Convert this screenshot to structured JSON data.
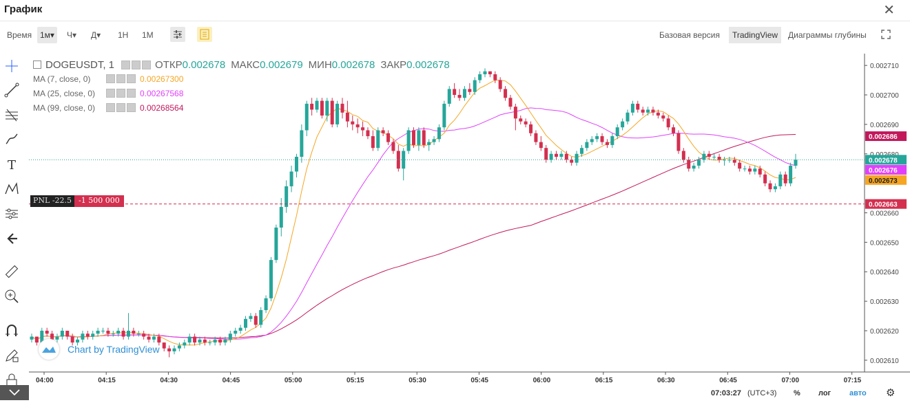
{
  "window": {
    "title": "График"
  },
  "toolbar": {
    "time_label": "Время",
    "intervals": [
      "1м▾",
      "Ч▾",
      "Д▾",
      "1Н",
      "1М"
    ],
    "active_interval": "1м▾",
    "versions": [
      "Базовая версия",
      "TradingView",
      "Диаграммы глубины"
    ],
    "active_version": "TradingView"
  },
  "legend": {
    "symbol": "DOGEUSDT, 1",
    "open_label": "ОТКР",
    "open": "0.002678",
    "high_label": "МАКС",
    "high": "0.002679",
    "low_label": "МИН",
    "low": "0.002678",
    "close_label": "ЗАКР",
    "close": "0.002678",
    "ma": [
      {
        "label": "MA (7, close, 0)",
        "value": "0.00267300",
        "color": "#f5a623"
      },
      {
        "label": "MA (25, close, 0)",
        "value": "0.00267568",
        "color": "#e040fb"
      },
      {
        "label": "MA (99, close, 0)",
        "value": "0.00268564",
        "color": "#c2185b"
      }
    ]
  },
  "position": {
    "pnl": "PNL -22.5",
    "qty": "-1 500 000",
    "price": "0.002663"
  },
  "watermark": "Chart by TradingView",
  "bottom": {
    "time": "07:03:27",
    "tz": "(UTC+3)",
    "percent": "%",
    "log": "лог",
    "auto": "авто"
  },
  "chart_data": {
    "type": "candlestick",
    "y_ticks": [
      "0.002710",
      "0.002700",
      "0.002690",
      "0.002680",
      "0.002660",
      "0.002650",
      "0.002640",
      "0.002630",
      "0.002620",
      "0.002610"
    ],
    "x_ticks": [
      "04:00",
      "04:15",
      "04:30",
      "04:45",
      "05:00",
      "05:15",
      "05:30",
      "05:45",
      "06:00",
      "06:15",
      "06:30",
      "06:45",
      "07:00",
      "07:15"
    ],
    "price_badges": [
      {
        "value": "0.002686",
        "color": "#c2185b"
      },
      {
        "value": "0.002678",
        "color": "#26a69a"
      },
      {
        "value": "0.002676",
        "color": "#e040fb"
      },
      {
        "value": "0.002673",
        "color": "#f5a623"
      },
      {
        "value": "0.002663",
        "color": "#d32f4f"
      }
    ],
    "ylim": [
      0.002606,
      0.002714
    ],
    "candles": [
      [
        0.002617,
        0.002619,
        0.002616,
        0.002618
      ],
      [
        0.002618,
        0.002618,
        0.002615,
        0.002616
      ],
      [
        0.002616,
        0.002621,
        0.002615,
        0.00262
      ],
      [
        0.00262,
        0.002621,
        0.002618,
        0.002619
      ],
      [
        0.002619,
        0.00262,
        0.002616,
        0.002617
      ],
      [
        0.002617,
        0.002619,
        0.002616,
        0.002618
      ],
      [
        0.002618,
        0.002621,
        0.002617,
        0.00262
      ],
      [
        0.00262,
        0.00262,
        0.002617,
        0.002618
      ],
      [
        0.002618,
        0.002619,
        0.002615,
        0.002616
      ],
      [
        0.002616,
        0.002618,
        0.002615,
        0.002617
      ],
      [
        0.002617,
        0.00262,
        0.002616,
        0.002619
      ],
      [
        0.002619,
        0.00262,
        0.002617,
        0.002618
      ],
      [
        0.002618,
        0.00262,
        0.002617,
        0.002619
      ],
      [
        0.002619,
        0.002621,
        0.002618,
        0.00262
      ],
      [
        0.00262,
        0.002621,
        0.002619,
        0.00262
      ],
      [
        0.00262,
        0.002621,
        0.002618,
        0.002619
      ],
      [
        0.002619,
        0.00262,
        0.002618,
        0.002619
      ],
      [
        0.002619,
        0.002621,
        0.002618,
        0.00262
      ],
      [
        0.00262,
        0.002621,
        0.002617,
        0.002618
      ],
      [
        0.002618,
        0.002626,
        0.002617,
        0.00262
      ],
      [
        0.00262,
        0.002621,
        0.002618,
        0.002619
      ],
      [
        0.002619,
        0.00262,
        0.002618,
        0.002619
      ],
      [
        0.002619,
        0.00262,
        0.002617,
        0.002618
      ],
      [
        0.002618,
        0.002619,
        0.002616,
        0.002617
      ],
      [
        0.002617,
        0.002619,
        0.002616,
        0.002618
      ],
      [
        0.002618,
        0.002619,
        0.002615,
        0.002616
      ],
      [
        0.002616,
        0.002616,
        0.002613,
        0.002614
      ],
      [
        0.002614,
        0.002615,
        0.002611,
        0.002613
      ],
      [
        0.002613,
        0.002615,
        0.002612,
        0.002614
      ],
      [
        0.002614,
        0.002616,
        0.002613,
        0.002615
      ],
      [
        0.002615,
        0.002617,
        0.002614,
        0.002616
      ],
      [
        0.002616,
        0.002619,
        0.002615,
        0.002618
      ],
      [
        0.002618,
        0.002619,
        0.002615,
        0.002616
      ],
      [
        0.002616,
        0.002618,
        0.002615,
        0.002617
      ],
      [
        0.002617,
        0.002618,
        0.002615,
        0.002616
      ],
      [
        0.002616,
        0.002617,
        0.002615,
        0.002616
      ],
      [
        0.002616,
        0.002618,
        0.002615,
        0.002617
      ],
      [
        0.002617,
        0.002618,
        0.002615,
        0.002616
      ],
      [
        0.002616,
        0.002618,
        0.002615,
        0.002617
      ],
      [
        0.002617,
        0.00262,
        0.002616,
        0.002619
      ],
      [
        0.002619,
        0.002621,
        0.002618,
        0.00262
      ],
      [
        0.00262,
        0.002622,
        0.002619,
        0.002621
      ],
      [
        0.002621,
        0.002625,
        0.00262,
        0.002624
      ],
      [
        0.002624,
        0.002626,
        0.002623,
        0.002625
      ],
      [
        0.002625,
        0.002626,
        0.002621,
        0.002622
      ],
      [
        0.002622,
        0.002628,
        0.002621,
        0.002627
      ],
      [
        0.002627,
        0.002632,
        0.002626,
        0.002631
      ],
      [
        0.002631,
        0.002645,
        0.00263,
        0.002644
      ],
      [
        0.002644,
        0.002656,
        0.002643,
        0.002655
      ],
      [
        0.002655,
        0.002665,
        0.002652,
        0.002662
      ],
      [
        0.002662,
        0.002671,
        0.00266,
        0.002669
      ],
      [
        0.002669,
        0.002676,
        0.002667,
        0.002674
      ],
      [
        0.002674,
        0.00268,
        0.002672,
        0.002679
      ],
      [
        0.002679,
        0.00269,
        0.002677,
        0.002688
      ],
      [
        0.002688,
        0.002698,
        0.002686,
        0.002697
      ],
      [
        0.002697,
        0.002699,
        0.002693,
        0.002695
      ],
      [
        0.002695,
        0.002699,
        0.002694,
        0.002698
      ],
      [
        0.002698,
        0.002699,
        0.002692,
        0.002693
      ],
      [
        0.002693,
        0.002699,
        0.002691,
        0.002698
      ],
      [
        0.002698,
        0.002699,
        0.002689,
        0.00269
      ],
      [
        0.00269,
        0.002698,
        0.002689,
        0.002697
      ],
      [
        0.002697,
        0.002699,
        0.002692,
        0.002694
      ],
      [
        0.002694,
        0.002698,
        0.002689,
        0.002691
      ],
      [
        0.002691,
        0.002693,
        0.002688,
        0.00269
      ],
      [
        0.00269,
        0.002692,
        0.002687,
        0.002689
      ],
      [
        0.002689,
        0.002691,
        0.002686,
        0.002688
      ],
      [
        0.002688,
        0.002689,
        0.002685,
        0.002686
      ],
      [
        0.002686,
        0.002688,
        0.002681,
        0.002682
      ],
      [
        0.002682,
        0.002689,
        0.002681,
        0.002688
      ],
      [
        0.002688,
        0.002689,
        0.002686,
        0.002687
      ],
      [
        0.002687,
        0.002688,
        0.002683,
        0.002684
      ],
      [
        0.002684,
        0.002685,
        0.00268,
        0.002681
      ],
      [
        0.002681,
        0.002683,
        0.002674,
        0.002675
      ],
      [
        0.002675,
        0.002682,
        0.002671,
        0.002681
      ],
      [
        0.002681,
        0.002689,
        0.00268,
        0.002688
      ],
      [
        0.002688,
        0.002689,
        0.002682,
        0.002683
      ],
      [
        0.002683,
        0.002689,
        0.002681,
        0.002688
      ],
      [
        0.002688,
        0.002689,
        0.002682,
        0.002683
      ],
      [
        0.002683,
        0.002685,
        0.002681,
        0.002684
      ],
      [
        0.002684,
        0.002686,
        0.002683,
        0.002685
      ],
      [
        0.002685,
        0.00269,
        0.002684,
        0.002689
      ],
      [
        0.002689,
        0.002698,
        0.002688,
        0.002697
      ],
      [
        0.002697,
        0.002703,
        0.002696,
        0.002702
      ],
      [
        0.002702,
        0.002704,
        0.002699,
        0.0027
      ],
      [
        0.0027,
        0.002702,
        0.002698,
        0.002699
      ],
      [
        0.002699,
        0.002703,
        0.002698,
        0.002702
      ],
      [
        0.002702,
        0.002704,
        0.0027,
        0.002701
      ],
      [
        0.002701,
        0.002706,
        0.0027,
        0.002705
      ],
      [
        0.002705,
        0.002708,
        0.002704,
        0.002707
      ],
      [
        0.002707,
        0.002709,
        0.002706,
        0.002708
      ],
      [
        0.002708,
        0.002708,
        0.002706,
        0.002707
      ],
      [
        0.002707,
        0.002708,
        0.002704,
        0.002705
      ],
      [
        0.002705,
        0.002706,
        0.002701,
        0.002702
      ],
      [
        0.002702,
        0.002703,
        0.002698,
        0.002699
      ],
      [
        0.002699,
        0.0027,
        0.002695,
        0.002696
      ],
      [
        0.002696,
        0.002697,
        0.002688,
        0.002692
      ],
      [
        0.002692,
        0.002693,
        0.00269,
        0.002691
      ],
      [
        0.002691,
        0.002692,
        0.002689,
        0.00269
      ],
      [
        0.00269,
        0.002691,
        0.002686,
        0.002687
      ],
      [
        0.002687,
        0.002688,
        0.002683,
        0.002684
      ],
      [
        0.002684,
        0.002686,
        0.002681,
        0.002682
      ],
      [
        0.002682,
        0.002683,
        0.002677,
        0.002678
      ],
      [
        0.002678,
        0.002681,
        0.002677,
        0.00268
      ],
      [
        0.00268,
        0.002681,
        0.002678,
        0.002679
      ],
      [
        0.002679,
        0.002681,
        0.002678,
        0.00268
      ],
      [
        0.00268,
        0.002681,
        0.002677,
        0.002678
      ],
      [
        0.002678,
        0.002679,
        0.002676,
        0.002677
      ],
      [
        0.002677,
        0.002681,
        0.002676,
        0.00268
      ],
      [
        0.00268,
        0.002683,
        0.002679,
        0.002682
      ],
      [
        0.002682,
        0.002685,
        0.002681,
        0.002684
      ],
      [
        0.002684,
        0.002686,
        0.002683,
        0.002685
      ],
      [
        0.002685,
        0.002687,
        0.002684,
        0.002686
      ],
      [
        0.002686,
        0.002687,
        0.002683,
        0.002684
      ],
      [
        0.002684,
        0.002685,
        0.002682,
        0.002683
      ],
      [
        0.002683,
        0.002687,
        0.002682,
        0.002686
      ],
      [
        0.002686,
        0.00269,
        0.002685,
        0.002689
      ],
      [
        0.002689,
        0.002692,
        0.002688,
        0.002691
      ],
      [
        0.002691,
        0.002695,
        0.00269,
        0.002694
      ],
      [
        0.002694,
        0.002698,
        0.002693,
        0.002697
      ],
      [
        0.002697,
        0.002698,
        0.002694,
        0.002695
      ],
      [
        0.002695,
        0.002696,
        0.002693,
        0.002694
      ],
      [
        0.002694,
        0.002696,
        0.002693,
        0.002695
      ],
      [
        0.002695,
        0.002696,
        0.002693,
        0.002694
      ],
      [
        0.002694,
        0.002695,
        0.002692,
        0.002693
      ],
      [
        0.002693,
        0.002694,
        0.002691,
        0.002692
      ],
      [
        0.002692,
        0.002693,
        0.002688,
        0.002689
      ],
      [
        0.002689,
        0.00269,
        0.002686,
        0.002687
      ],
      [
        0.002687,
        0.002688,
        0.00268,
        0.002681
      ],
      [
        0.002681,
        0.002682,
        0.002677,
        0.002678
      ],
      [
        0.002678,
        0.002679,
        0.002674,
        0.002675
      ],
      [
        0.002675,
        0.002677,
        0.002674,
        0.002676
      ],
      [
        0.002676,
        0.002679,
        0.002675,
        0.002678
      ],
      [
        0.002678,
        0.002681,
        0.002677,
        0.00268
      ],
      [
        0.00268,
        0.002681,
        0.002678,
        0.002679
      ],
      [
        0.002679,
        0.00268,
        0.002678,
        0.002679
      ],
      [
        0.002679,
        0.00268,
        0.002677,
        0.002678
      ],
      [
        0.002678,
        0.002679,
        0.002676,
        0.002678
      ],
      [
        0.002678,
        0.002679,
        0.002677,
        0.002678
      ],
      [
        0.002678,
        0.002679,
        0.002676,
        0.002677
      ],
      [
        0.002677,
        0.002678,
        0.002674,
        0.002675
      ],
      [
        0.002675,
        0.002676,
        0.002674,
        0.002675
      ],
      [
        0.002675,
        0.002676,
        0.002673,
        0.002674
      ],
      [
        0.002674,
        0.002676,
        0.002673,
        0.002675
      ],
      [
        0.002675,
        0.002676,
        0.002672,
        0.002673
      ],
      [
        0.002673,
        0.002674,
        0.002669,
        0.00267
      ],
      [
        0.00267,
        0.002671,
        0.002667,
        0.002668
      ],
      [
        0.002668,
        0.00267,
        0.002667,
        0.002669
      ],
      [
        0.002669,
        0.002674,
        0.002668,
        0.002673
      ],
      [
        0.002673,
        0.002674,
        0.002669,
        0.00267
      ],
      [
        0.00267,
        0.002677,
        0.002669,
        0.002676
      ],
      [
        0.002676,
        0.00268,
        0.002675,
        0.002678
      ]
    ]
  }
}
